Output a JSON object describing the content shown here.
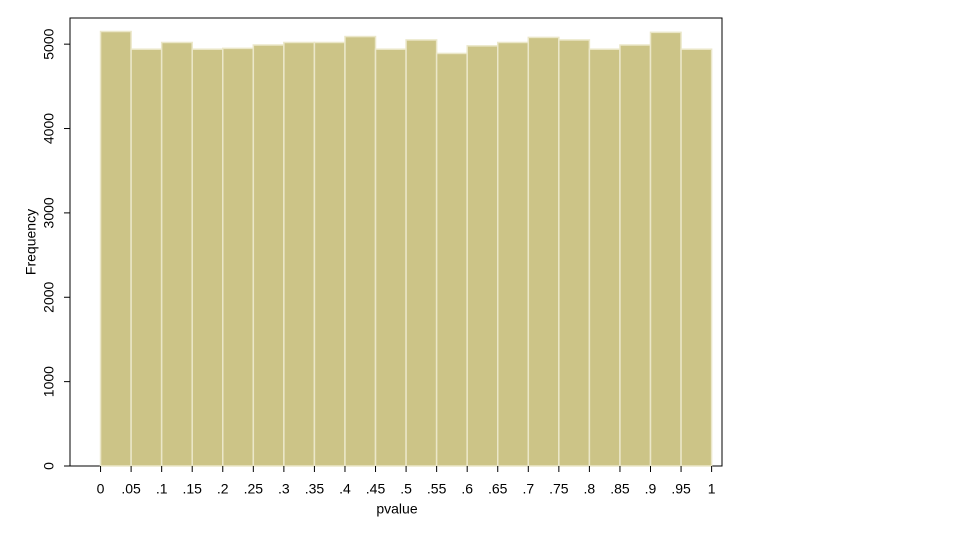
{
  "chart_data": {
    "type": "histogram",
    "x_label": "pvalue",
    "y_label": "Frequency",
    "bins": [
      0,
      0.05,
      0.1,
      0.15,
      0.2,
      0.25,
      0.3,
      0.35,
      0.4,
      0.45,
      0.5,
      0.55,
      0.6,
      0.65,
      0.7,
      0.75,
      0.8,
      0.85,
      0.9,
      0.95,
      1
    ],
    "values": [
      5150,
      4940,
      5020,
      4940,
      4950,
      4990,
      5020,
      5020,
      5090,
      4940,
      5050,
      4890,
      4980,
      5020,
      5080,
      5050,
      4940,
      4990,
      5140,
      4940
    ],
    "color": "#ccc487",
    "edge_color": "#ebe7c9",
    "xlim": [
      -0.05,
      1.017
    ],
    "ylim": [
      0,
      5310
    ],
    "xticks": [
      0,
      {
        "value": 0.05,
        "label": ".05"
      },
      {
        "value": 0.1,
        "label": ".1"
      },
      {
        "value": 0.15,
        "label": ".15"
      },
      {
        "value": 0.2,
        "label": ".2"
      },
      {
        "value": 0.25,
        "label": ".25"
      },
      {
        "value": 0.3,
        "label": ".3"
      },
      {
        "value": 0.35,
        "label": ".35"
      },
      {
        "value": 0.4,
        "label": ".4"
      },
      {
        "value": 0.45,
        "label": ".45"
      },
      {
        "value": 0.5,
        "label": ".5"
      },
      {
        "value": 0.55,
        "label": ".55"
      },
      {
        "value": 0.6,
        "label": ".6"
      },
      {
        "value": 0.65,
        "label": ".65"
      },
      {
        "value": 0.7,
        "label": ".7"
      },
      {
        "value": 0.75,
        "label": ".75"
      },
      {
        "value": 0.8,
        "label": ".8"
      },
      {
        "value": 0.85,
        "label": ".85"
      },
      {
        "value": 0.9,
        "label": ".9"
      },
      {
        "value": 0.95,
        "label": ".95"
      },
      1
    ],
    "yticks": [
      0,
      1000,
      2000,
      3000,
      4000,
      5000
    ]
  }
}
